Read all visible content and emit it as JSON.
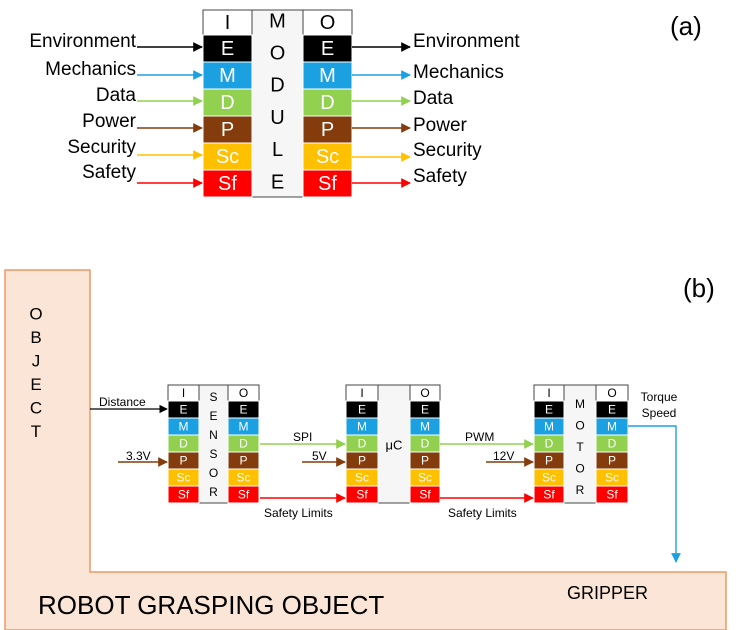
{
  "panel_a": {
    "label": "(a)",
    "module": {
      "input_header": "I",
      "output_header": "O",
      "name_letters": [
        "M",
        "O",
        "D",
        "U",
        "L",
        "E"
      ],
      "rows": [
        "E",
        "M",
        "D",
        "P",
        "Sc",
        "Sf"
      ]
    },
    "inputs": [
      "Environment",
      "Mechanics",
      "Data",
      "Power",
      "Security",
      "Safety"
    ],
    "outputs": [
      "Environment",
      "Mechanics",
      "Data",
      "Power",
      "Security",
      "Safety"
    ]
  },
  "panel_b": {
    "label": "(b)",
    "object_letters": [
      "O",
      "B",
      "J",
      "E",
      "C",
      "T"
    ],
    "scene_label": "ROBOT GRASPING OBJECT",
    "gripper_label": "GRIPPER",
    "input_header": "I",
    "output_header": "O",
    "module_rows": [
      "E",
      "M",
      "D",
      "P",
      "Sc",
      "Sf"
    ],
    "modules": [
      {
        "name_letters": [
          "S",
          "E",
          "N",
          "S",
          "O",
          "R"
        ]
      },
      {
        "name_letters": [
          "μC"
        ]
      },
      {
        "name_letters": [
          "M",
          "O",
          "T",
          "O",
          "R"
        ]
      }
    ],
    "signals": [
      "Distance",
      "3.3V",
      "SPI",
      "5V",
      "Safety Limits",
      "PWM",
      "12V",
      "Safety Limits"
    ],
    "output_signals": [
      "Torque",
      "Speed"
    ]
  }
}
